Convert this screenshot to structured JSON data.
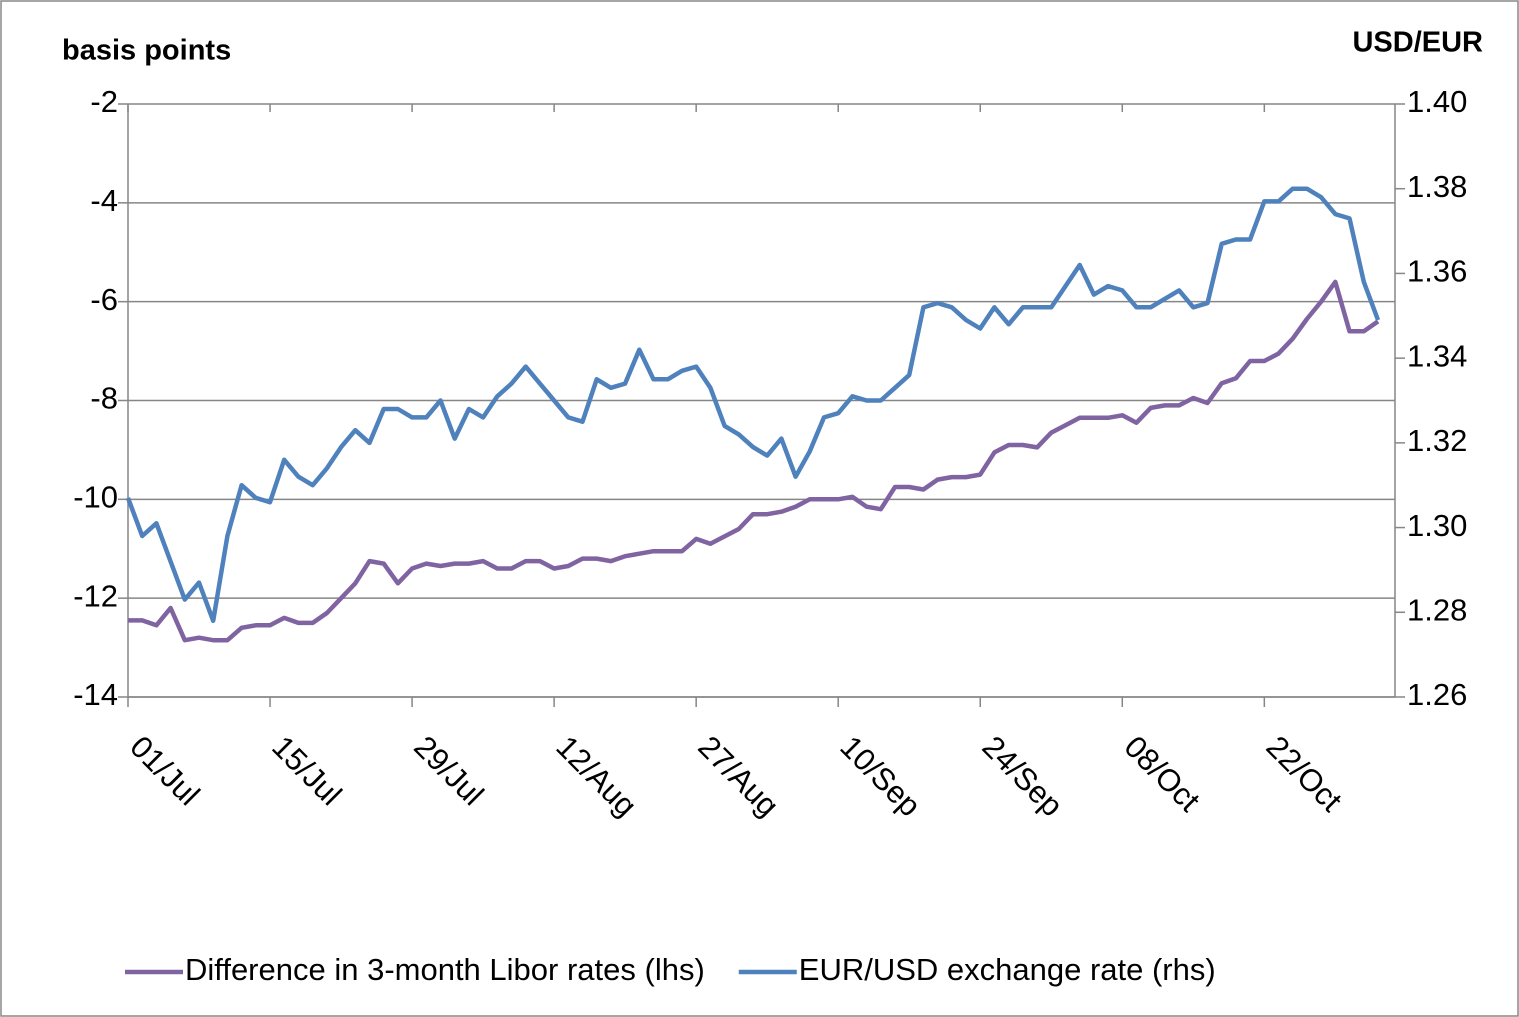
{
  "chart_data": {
    "type": "line",
    "y_label": "basis points",
    "y2_label": "USD/EUR",
    "categories": [
      "01/Jul",
      null,
      null,
      null,
      null,
      null,
      null,
      null,
      null,
      null,
      "15/Jul",
      null,
      null,
      null,
      null,
      null,
      null,
      null,
      null,
      null,
      "29/Jul",
      null,
      null,
      null,
      null,
      null,
      null,
      null,
      null,
      null,
      "12/Aug",
      null,
      null,
      null,
      null,
      null,
      null,
      null,
      null,
      null,
      "27/Aug",
      null,
      null,
      null,
      null,
      null,
      null,
      null,
      null,
      null,
      "10/Sep",
      null,
      null,
      null,
      null,
      null,
      null,
      null,
      null,
      null,
      "24/Sep",
      null,
      null,
      null,
      null,
      null,
      null,
      null,
      null,
      null,
      "08/Oct",
      null,
      null,
      null,
      null,
      null,
      null,
      null,
      null,
      null,
      "22/Oct",
      null,
      null,
      null,
      null,
      null,
      null,
      null,
      null
    ],
    "series": [
      {
        "name": "Difference in 3-month Libor rates (lhs)",
        "color": "#8064a2",
        "axis": "y",
        "values": [
          -12.45,
          -12.45,
          -12.55,
          -12.2,
          -12.85,
          -12.8,
          -12.85,
          -12.85,
          -12.6,
          -12.55,
          -12.55,
          -12.4,
          -12.5,
          -12.5,
          -12.3,
          -12.0,
          -11.7,
          -11.25,
          -11.3,
          -11.7,
          -11.4,
          -11.3,
          -11.35,
          -11.3,
          -11.3,
          -11.25,
          -11.4,
          -11.4,
          -11.25,
          -11.25,
          -11.4,
          -11.35,
          -11.2,
          -11.2,
          -11.25,
          -11.15,
          -11.1,
          -11.05,
          -11.05,
          -11.05,
          -10.8,
          -10.9,
          -10.75,
          -10.6,
          -10.3,
          -10.3,
          -10.25,
          -10.15,
          -10.0,
          -10.0,
          -10.0,
          -9.95,
          -10.15,
          -10.2,
          -9.75,
          -9.75,
          -9.8,
          -9.6,
          -9.55,
          -9.55,
          -9.5,
          -9.05,
          -8.9,
          -8.9,
          -8.95,
          -8.65,
          -8.5,
          -8.35,
          -8.35,
          -8.35,
          -8.3,
          -8.45,
          -8.15,
          -8.1,
          -8.1,
          -7.95,
          -8.05,
          -7.65,
          -7.55,
          -7.2,
          -7.2,
          -7.05,
          -6.75,
          -6.35,
          -6.0,
          -5.6,
          -6.6,
          -6.6,
          -6.4
        ]
      },
      {
        "name": "EUR/USD exchange rate (rhs)",
        "color": "#4f81bd",
        "axis": "y2",
        "values": [
          1.307,
          1.298,
          1.301,
          1.292,
          1.283,
          1.287,
          1.278,
          1.298,
          1.31,
          1.307,
          1.306,
          1.316,
          1.312,
          1.31,
          1.314,
          1.319,
          1.323,
          1.32,
          1.328,
          1.328,
          1.326,
          1.326,
          1.33,
          1.321,
          1.328,
          1.326,
          1.331,
          1.334,
          1.338,
          1.334,
          1.33,
          1.326,
          1.325,
          1.335,
          1.333,
          1.334,
          1.342,
          1.335,
          1.335,
          1.337,
          1.338,
          1.333,
          1.324,
          1.322,
          1.319,
          1.317,
          1.321,
          1.312,
          1.318,
          1.326,
          1.327,
          1.331,
          1.33,
          1.33,
          1.333,
          1.336,
          1.352,
          1.353,
          1.352,
          1.349,
          1.347,
          1.352,
          1.348,
          1.352,
          1.352,
          1.352,
          1.357,
          1.362,
          1.355,
          1.357,
          1.356,
          1.352,
          1.352,
          1.354,
          1.356,
          1.352,
          1.353,
          1.367,
          1.368,
          1.368,
          1.377,
          1.377,
          1.38,
          1.38,
          1.378,
          1.374,
          1.373,
          1.358,
          1.349
        ]
      }
    ],
    "ylim": [
      -14,
      -2
    ],
    "yticks": [
      -14,
      -12,
      -10,
      -8,
      -6,
      -4,
      -2
    ],
    "y2lim": [
      1.26,
      1.4
    ],
    "y2ticks": [
      1.26,
      1.28,
      {
        "value": 1.3,
        "label": "1.30"
      },
      1.32,
      1.34,
      1.36,
      1.38,
      {
        "value": 1.4,
        "label": "1.40"
      }
    ],
    "grid": true,
    "legend": "bottom"
  }
}
